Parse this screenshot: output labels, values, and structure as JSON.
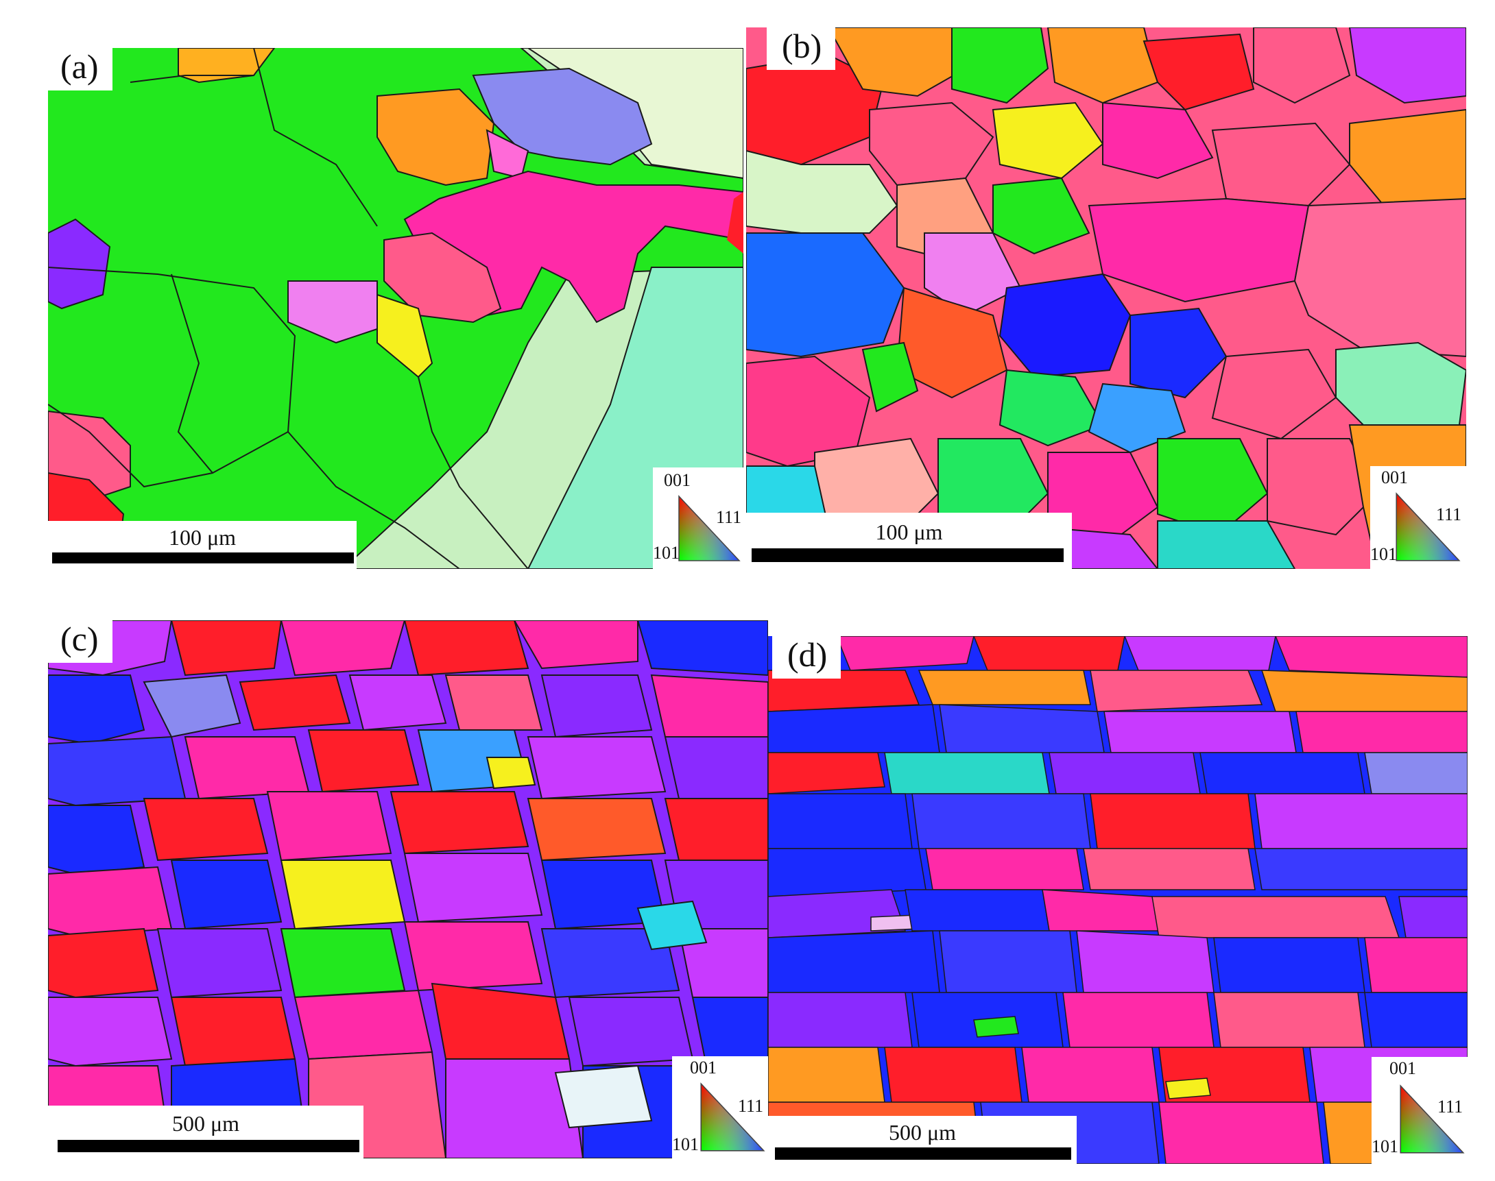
{
  "figure": {
    "panels": [
      {
        "id": "a",
        "label": "(a)",
        "scale_text": "100 μm"
      },
      {
        "id": "b",
        "label": "(b)",
        "scale_text": "100 μm"
      },
      {
        "id": "c",
        "label": "(c)",
        "scale_text": "500 μm"
      },
      {
        "id": "d",
        "label": "(d)",
        "scale_text": "500 μm"
      }
    ],
    "ipf_key": {
      "top": "001",
      "right": "111",
      "left": "101"
    }
  },
  "colors": {
    "boundary": "#1a1a1a",
    "green": "#22e81e",
    "mint": "#8af0b8",
    "pale_green": "#d8f5c8",
    "magenta": "#ff2aa8",
    "pink": "#ff5a8a",
    "red": "#ff1e2a",
    "orange": "#ff9a22",
    "yellow": "#f6f01e",
    "blue": "#1a2aff",
    "violet": "#8a2aff",
    "purple": "#c83aff",
    "sky": "#3aa0ff",
    "cyan": "#2ad8e8"
  }
}
